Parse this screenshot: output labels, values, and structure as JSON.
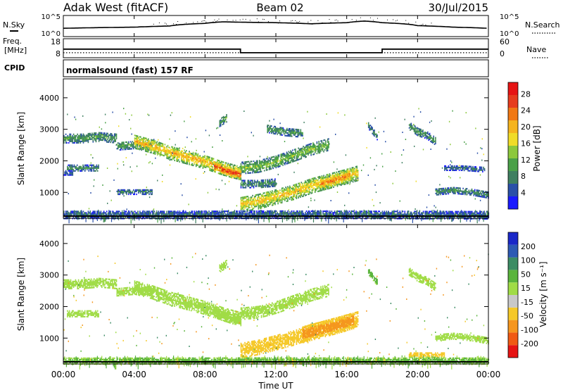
{
  "header": {
    "station": "Adak West (fitACF)",
    "beam": "Beam 02",
    "date": "30/Jul/2015"
  },
  "noise_panel": {
    "left_label": "N.Sky",
    "right_label": "N.Search",
    "left_ticks": [
      "10^5",
      "10^0"
    ],
    "right_ticks": [
      "10^5",
      "10^0"
    ]
  },
  "freq_panel": {
    "left_label_1": "Freq.",
    "left_label_2": "[MHz]",
    "right_label": "Nave",
    "left_ticks": [
      "18",
      "8"
    ],
    "right_ticks": [
      "60",
      "0"
    ],
    "cpid_label": "CPID",
    "cpid_text": "normalsound (fast) 157 RF"
  },
  "x_axis": {
    "label": "Time UT",
    "ticks": [
      "00:00",
      "04:00",
      "08:00",
      "12:00",
      "16:00",
      "20:00",
      "00:00"
    ]
  },
  "colors": {
    "power": [
      "#1a1aff",
      "#2a50a8",
      "#3f7f60",
      "#4aa048",
      "#8cc83c",
      "#f0dc28",
      "#f5b41e",
      "#f07814",
      "#e63c1e",
      "#e61414"
    ],
    "velocity": [
      "#e61414",
      "#f05a14",
      "#f5961e",
      "#f5c828",
      "#c8c8c8",
      "#a0dc46",
      "#5ab43c",
      "#3c8c64",
      "#2d5ab4",
      "#1a28c8"
    ]
  },
  "chart_data": [
    {
      "type": "line",
      "title": "N.Sky / N.Search",
      "x_range_hours": [
        0,
        24
      ],
      "y_scale": "log",
      "series": [
        {
          "name": "N.Sky",
          "x": [
            0,
            2,
            4,
            6,
            8,
            9,
            10,
            12,
            14,
            16,
            17,
            18,
            20,
            22,
            24
          ],
          "values": [
            100,
            150,
            200,
            400,
            2000,
            5000,
            4000,
            3000,
            1500,
            3000,
            8000,
            3000,
            500,
            200,
            100
          ]
        }
      ]
    },
    {
      "type": "line",
      "title": "Freq. / Nave",
      "x_range_hours": [
        0,
        24
      ],
      "series": [
        {
          "name": "Freq. [MHz]",
          "x": [
            0,
            10,
            10,
            18,
            18,
            24
          ],
          "values": [
            14,
            14,
            11,
            11,
            14,
            14
          ]
        },
        {
          "name": "Nave",
          "x": [
            0,
            24
          ],
          "values": [
            18,
            18
          ]
        }
      ]
    },
    {
      "type": "heatmap",
      "ylabel": "Slant Range [km]",
      "xlabel": "Time UT",
      "colorbar_label": "Power [dB]",
      "colorbar_ticks": [
        "4",
        "8",
        "12",
        "16",
        "20",
        "24",
        "28"
      ],
      "x_range_hours": [
        0,
        24
      ],
      "ylim": [
        180,
        4600
      ],
      "ytick_labels": [
        "1000",
        "2000",
        "3000",
        "4000"
      ],
      "bands": [
        {
          "t": [
            0,
            1,
            2,
            3
          ],
          "r": [
            2700,
            2700,
            2750,
            2700
          ],
          "w": 150,
          "v": 10
        },
        {
          "t": [
            3,
            4,
            5
          ],
          "r": [
            2450,
            2500,
            2450
          ],
          "w": 130,
          "v": 11
        },
        {
          "t": [
            4,
            5,
            6,
            7,
            8,
            9,
            10
          ],
          "r": [
            2600,
            2450,
            2250,
            2100,
            1950,
            1750,
            1600
          ],
          "w": 220,
          "v": 20
        },
        {
          "t": [
            8.5,
            9,
            9.5,
            10
          ],
          "r": [
            1800,
            1700,
            1600,
            1550
          ],
          "w": 160,
          "v": 27
        },
        {
          "t": [
            10,
            11,
            12,
            13,
            14,
            15
          ],
          "r": [
            1750,
            1800,
            1950,
            2150,
            2350,
            2500
          ],
          "w": 180,
          "v": 13
        },
        {
          "t": [
            10,
            11,
            12,
            13,
            14,
            15,
            16,
            16.6
          ],
          "r": [
            600,
            700,
            850,
            1000,
            1200,
            1350,
            1500,
            1600
          ],
          "w": 240,
          "v": 19
        },
        {
          "t": [
            14.5,
            15.5,
            16.2
          ],
          "r": [
            1250,
            1400,
            1550
          ],
          "w": 200,
          "v": 23
        },
        {
          "t": [
            10,
            11,
            12
          ],
          "r": [
            1250,
            1250,
            1300
          ],
          "w": 120,
          "v": 9
        },
        {
          "t": [
            0.2,
            1,
            2
          ],
          "r": [
            1750,
            1750,
            1750
          ],
          "w": 90,
          "v": 9
        },
        {
          "t": [
            0,
            0.5
          ],
          "r": [
            1600,
            1600
          ],
          "w": 70,
          "v": 6
        },
        {
          "t": [
            3,
            4,
            5
          ],
          "r": [
            1000,
            1000,
            1000
          ],
          "w": 80,
          "v": 8
        },
        {
          "t": [
            8.8,
            9.2
          ],
          "r": [
            3200,
            3350
          ],
          "w": 130,
          "v": 10
        },
        {
          "t": [
            11.5,
            12.5,
            13.5
          ],
          "r": [
            3000,
            2900,
            2850
          ],
          "w": 120,
          "v": 10
        },
        {
          "t": [
            17.2,
            17.7
          ],
          "r": [
            3100,
            2750
          ],
          "w": 100,
          "v": 9
        },
        {
          "t": [
            19.5,
            20,
            20.5,
            21
          ],
          "r": [
            3100,
            2900,
            2800,
            2600
          ],
          "w": 120,
          "v": 10
        },
        {
          "t": [
            21,
            22,
            23,
            24
          ],
          "r": [
            1000,
            1050,
            1000,
            900
          ],
          "w": 100,
          "v": 9
        },
        {
          "t": [
            21.5,
            22.5,
            23.8
          ],
          "r": [
            1750,
            1750,
            1700
          ],
          "w": 70,
          "v": 7
        },
        {
          "t": [
            0,
            6,
            12,
            18,
            24
          ],
          "r": [
            270,
            270,
            280,
            270,
            260
          ],
          "w": 120,
          "v": 6
        }
      ]
    },
    {
      "type": "heatmap",
      "ylabel": "Slant Range [km]",
      "xlabel": "Time UT",
      "colorbar_label": "Velocity [m s⁻¹]",
      "colorbar_ticks": [
        "-200",
        "-100",
        "-50",
        "-15",
        "15",
        "50",
        "100",
        "200"
      ],
      "x_range_hours": [
        0,
        24
      ],
      "ylim": [
        180,
        4600
      ],
      "ytick_labels": [
        "1000",
        "2000",
        "3000",
        "4000"
      ],
      "bands": [
        {
          "t": [
            0,
            1,
            2,
            3
          ],
          "r": [
            2700,
            2700,
            2750,
            2700
          ],
          "w": 150,
          "v": 0
        },
        {
          "t": [
            3,
            4,
            5
          ],
          "r": [
            2450,
            2500,
            2450
          ],
          "w": 130,
          "v": 0
        },
        {
          "t": [
            4,
            5,
            6,
            7,
            8,
            9,
            10
          ],
          "r": [
            2600,
            2450,
            2250,
            2100,
            1950,
            1750,
            1600
          ],
          "w": 220,
          "v": 0
        },
        {
          "t": [
            8.5,
            9,
            9.5,
            10
          ],
          "r": [
            1800,
            1700,
            1600,
            1550
          ],
          "w": 160,
          "v": 5
        },
        {
          "t": [
            10,
            11,
            12,
            13,
            14,
            15
          ],
          "r": [
            1750,
            1800,
            1950,
            2150,
            2350,
            2500
          ],
          "w": 180,
          "v": 0
        },
        {
          "t": [
            10,
            11,
            12,
            13,
            14,
            15,
            16,
            16.6
          ],
          "r": [
            600,
            700,
            850,
            1000,
            1200,
            1350,
            1500,
            1600
          ],
          "w": 240,
          "v": -40
        },
        {
          "t": [
            13.5,
            14.5,
            15.5,
            16.4
          ],
          "r": [
            1100,
            1250,
            1400,
            1550
          ],
          "w": 260,
          "v": -70
        },
        {
          "t": [
            0.2,
            1,
            2
          ],
          "r": [
            1750,
            1750,
            1750
          ],
          "w": 90,
          "v": 0
        },
        {
          "t": [
            8.8,
            9.2
          ],
          "r": [
            3200,
            3350
          ],
          "w": 130,
          "v": 0
        },
        {
          "t": [
            17.2,
            17.7
          ],
          "r": [
            3100,
            2750
          ],
          "w": 100,
          "v": 30
        },
        {
          "t": [
            19.5,
            20,
            20.5,
            21
          ],
          "r": [
            3100,
            2900,
            2800,
            2600
          ],
          "w": 120,
          "v": 0
        },
        {
          "t": [
            21,
            22,
            23,
            24
          ],
          "r": [
            1000,
            1050,
            1000,
            900
          ],
          "w": 100,
          "v": 0
        },
        {
          "t": [
            19.5,
            20.5,
            21.5
          ],
          "r": [
            450,
            450,
            450
          ],
          "w": 80,
          "v": -30
        },
        {
          "t": [
            0,
            6,
            12,
            18,
            24
          ],
          "r": [
            260,
            260,
            270,
            260,
            260
          ],
          "w": 100,
          "v": 25
        }
      ]
    }
  ]
}
